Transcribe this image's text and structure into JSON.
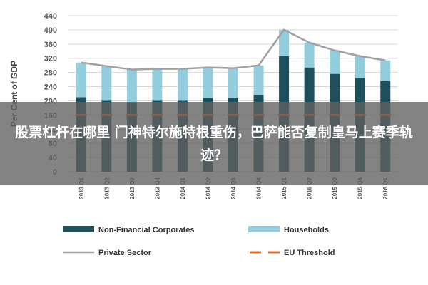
{
  "chart_data": {
    "type": "bar",
    "ylabel": "Per Cent of GDP",
    "ylim": [
      0,
      440
    ],
    "yticks": [
      0,
      40,
      80,
      120,
      160,
      200,
      240,
      280,
      320,
      360,
      400,
      440
    ],
    "categories": [
      "2013 Q1",
      "2013 Q2",
      "2013 Q3",
      "2013 Q4",
      "2014 Q1",
      "2014 Q2",
      "2014 Q3",
      "2014 Q4",
      "2015 Q1",
      "2015 Q2",
      "2015 Q3",
      "2015 Q4",
      "2016 Q1"
    ],
    "series": [
      {
        "name": "Non-Financial Corporates",
        "kind": "bar",
        "color": "#1f4f5c",
        "values": [
          210,
          200,
          196,
          200,
          200,
          208,
          208,
          216,
          326,
          294,
          276,
          264,
          256
        ]
      },
      {
        "name": "Households",
        "kind": "bar",
        "color": "#92cddd",
        "values": [
          98,
          98,
          92,
          90,
          90,
          86,
          84,
          84,
          74,
          70,
          66,
          62,
          58
        ]
      },
      {
        "name": "Private Sector",
        "kind": "line",
        "color": "#a0a0a0",
        "values": [
          308,
          298,
          288,
          290,
          290,
          294,
          292,
          300,
          400,
          364,
          342,
          326,
          314
        ]
      },
      {
        "name": "EU Threshold",
        "kind": "line",
        "color": "#e8692a",
        "values": [
          160,
          160,
          160,
          160,
          160,
          160,
          160,
          160,
          160,
          160,
          160,
          160,
          160
        ]
      }
    ],
    "legend": [
      "Non-Financial Corporates",
      "Households",
      "Private Sector",
      "EU Threshold"
    ],
    "legend_position": "bottom",
    "grid": true
  },
  "overlay": {
    "text": "股票杠杆在哪里 门神特尔施特根重伤，巴萨能否复制皇马上赛季轨迹？"
  }
}
